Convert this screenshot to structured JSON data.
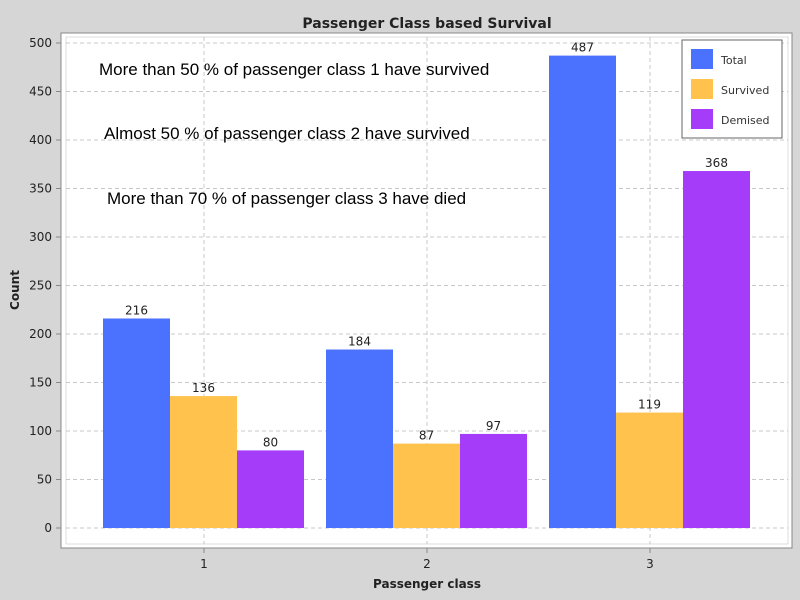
{
  "chart_data": {
    "type": "bar",
    "title": "Passenger Class based Survival",
    "xlabel": "Passenger class",
    "ylabel": "Count",
    "categories": [
      "1",
      "2",
      "3"
    ],
    "series": [
      {
        "name": "Total",
        "color": "#4a72ff",
        "values": [
          216,
          184,
          487
        ]
      },
      {
        "name": "Survived",
        "color": "#ffc24d",
        "values": [
          136,
          87,
          119
        ]
      },
      {
        "name": "Demised",
        "color": "#a43cfa",
        "values": [
          80,
          97,
          368
        ]
      }
    ],
    "ylim": [
      0,
      500
    ],
    "yticks": [
      0,
      50,
      100,
      150,
      200,
      250,
      300,
      350,
      400,
      450,
      500
    ],
    "grid": true,
    "legend_position": "top-right",
    "annotations": [
      "More than 50 % of passenger class 1 have survived",
      "Almost 50 % of passenger class 2 have survived",
      "More than 70 % of passenger class 3 have died"
    ]
  }
}
